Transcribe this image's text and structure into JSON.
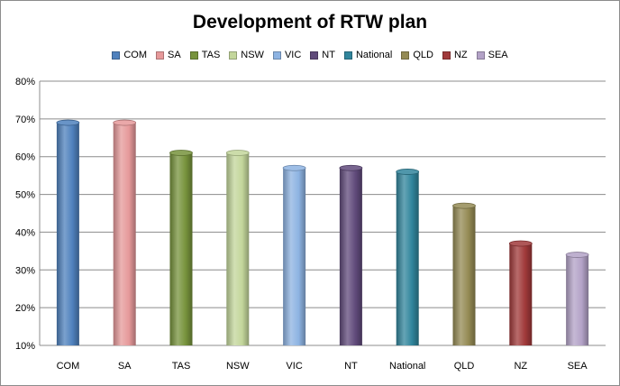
{
  "chart_data": {
    "type": "bar",
    "title": "Development of RTW plan",
    "categories": [
      "COM",
      "SA",
      "TAS",
      "NSW",
      "VIC",
      "NT",
      "National",
      "QLD",
      "NZ",
      "SEA"
    ],
    "values": [
      69,
      69,
      61,
      61,
      57,
      57,
      56,
      47,
      37,
      34
    ],
    "value_format": "percent",
    "ylim": [
      10,
      80
    ],
    "yticks": [
      "10%",
      "20%",
      "30%",
      "40%",
      "50%",
      "60%",
      "70%",
      "80%"
    ],
    "grid": true,
    "legend": "top",
    "colors": [
      "#4f81bd",
      "#e6999a",
      "#77933c",
      "#c3d69b",
      "#8db3e2",
      "#604a7b",
      "#31859c",
      "#948a54",
      "#a0393a",
      "#b3a2c7"
    ]
  }
}
